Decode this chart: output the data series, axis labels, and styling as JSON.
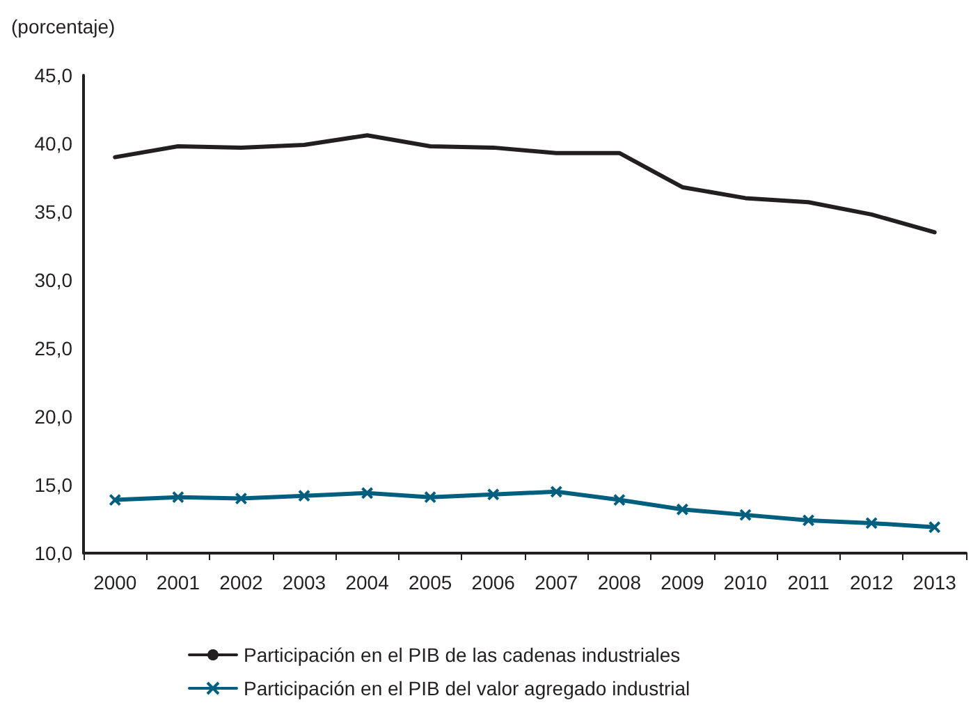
{
  "chart_data": {
    "type": "line",
    "ylabel": "(porcentaje)",
    "categories": [
      "2000",
      "2001",
      "2002",
      "2003",
      "2004",
      "2005",
      "2006",
      "2007",
      "2008",
      "2009",
      "2010",
      "2011",
      "2012",
      "2013"
    ],
    "series": [
      {
        "name": "Participación en el PIB de las cadenas industriales",
        "color": "#231f20",
        "marker": "none",
        "values": [
          39.0,
          39.8,
          39.7,
          39.9,
          40.6,
          39.8,
          39.7,
          39.3,
          39.3,
          36.8,
          36.0,
          35.7,
          34.8,
          33.5
        ]
      },
      {
        "name": "Participación en el PIB del valor agregado industrial",
        "color": "#005f7f",
        "marker": "cross",
        "values": [
          13.9,
          14.1,
          14.0,
          14.2,
          14.4,
          14.1,
          14.3,
          14.5,
          13.9,
          13.2,
          12.8,
          12.4,
          12.2,
          11.9
        ]
      }
    ],
    "ylim": [
      10,
      45
    ],
    "yticks": [
      {
        "value": 10,
        "label": "10,0"
      },
      {
        "value": 15,
        "label": "15,0"
      },
      {
        "value": 20,
        "label": "20,0"
      },
      {
        "value": 25,
        "label": "25,0"
      },
      {
        "value": 30,
        "label": "30,0"
      },
      {
        "value": 35,
        "label": "35,0"
      },
      {
        "value": 40,
        "label": "40,0"
      },
      {
        "value": 45,
        "label": "45,0"
      }
    ],
    "grid": false,
    "legend": "bottom",
    "line_style": "solid"
  }
}
